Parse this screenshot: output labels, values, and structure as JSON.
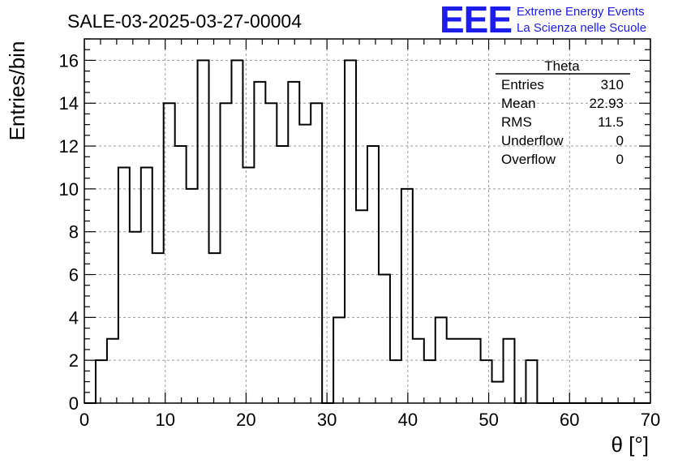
{
  "header": {
    "run_title": "SALE-03-2025-03-27-00004",
    "logo_text": "EEE",
    "org_line1": "Extreme Energy Events",
    "org_line2": "La Scienza nelle Scuole"
  },
  "stats": {
    "name": "Theta",
    "rows": [
      {
        "label": "Entries",
        "value": "310"
      },
      {
        "label": "Mean",
        "value": "22.93"
      },
      {
        "label": "RMS",
        "value": "11.5"
      },
      {
        "label": "Underflow",
        "value": "0"
      },
      {
        "label": "Overflow",
        "value": "0"
      }
    ]
  },
  "colors": {
    "logo": "#1c1cf0",
    "line": "#000000",
    "grid": "#9a9a9a"
  },
  "chart_data": {
    "type": "bar",
    "histogram": true,
    "bin_width": 1.4,
    "bin_edges_start": 0,
    "values": [
      0,
      2,
      3,
      11,
      8,
      11,
      7,
      14,
      12,
      10,
      16,
      7,
      14,
      16,
      11,
      15,
      14,
      12,
      15,
      13,
      14,
      0,
      4,
      16,
      9,
      12,
      6,
      2,
      10,
      3,
      2,
      4,
      3,
      3,
      3,
      2,
      1,
      3,
      0,
      2,
      0,
      0,
      0,
      0,
      0,
      0,
      0,
      0,
      0,
      0
    ],
    "xlabel": "θ [°]",
    "ylabel": "Entries/bin",
    "xlim": [
      0,
      70
    ],
    "ylim": [
      0,
      17
    ],
    "xticks": [
      0,
      10,
      20,
      30,
      40,
      50,
      60,
      70
    ],
    "yticks": [
      0,
      2,
      4,
      6,
      8,
      10,
      12,
      14,
      16
    ],
    "grid": true,
    "legend": "top-right"
  }
}
